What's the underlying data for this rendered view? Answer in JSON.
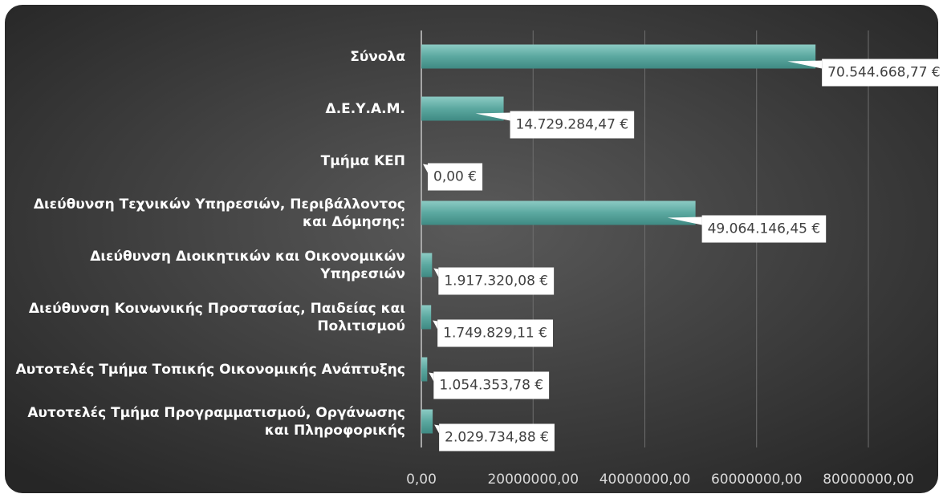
{
  "chart_data": {
    "type": "hbar",
    "categories": [
      "Σύνολα",
      "Δ.Ε.Υ.Α.Μ.",
      "Τμήμα ΚΕΠ",
      "Διεύθυνση Τεχνικών Υπηρεσιών, Περιβάλλοντος και Δόμησης:",
      "Διεύθυνση Διοικητικών και Οικονομικών Υπηρεσιών",
      "Διεύθυνση Κοινωνικής Προστασίας, Παιδείας και Πολιτισμού",
      "Αυτοτελές Τμήμα Τοπικής Οικονομικής Ανάπτυξης",
      "Αυτοτελές Τμήμα  Προγραμματισμού, Οργάνωσης και Πληροφορικής"
    ],
    "values": [
      70544668.77,
      14729284.47,
      0,
      49064146.45,
      1917320.08,
      1749829.11,
      1054353.78,
      2029734.88
    ],
    "value_labels": [
      "70.544.668,77 €",
      "14.729.284,47 €",
      "0,00 €",
      "49.064.146,45 €",
      "1.917.320,08 €",
      "1.749.829,11 €",
      "1.054.353,78 €",
      "2.029.734,88 €"
    ],
    "color": "#5ba8a0",
    "xlim": [
      0,
      80000000
    ],
    "xticks": [
      {
        "value": 0,
        "label": "0,00"
      },
      {
        "value": 20000000,
        "label": "20000000,00"
      },
      {
        "value": 40000000,
        "label": "40000000,00"
      },
      {
        "value": 60000000,
        "label": "60000000,00"
      },
      {
        "value": 80000000,
        "label": "80000000,00"
      }
    ],
    "grid": true
  }
}
